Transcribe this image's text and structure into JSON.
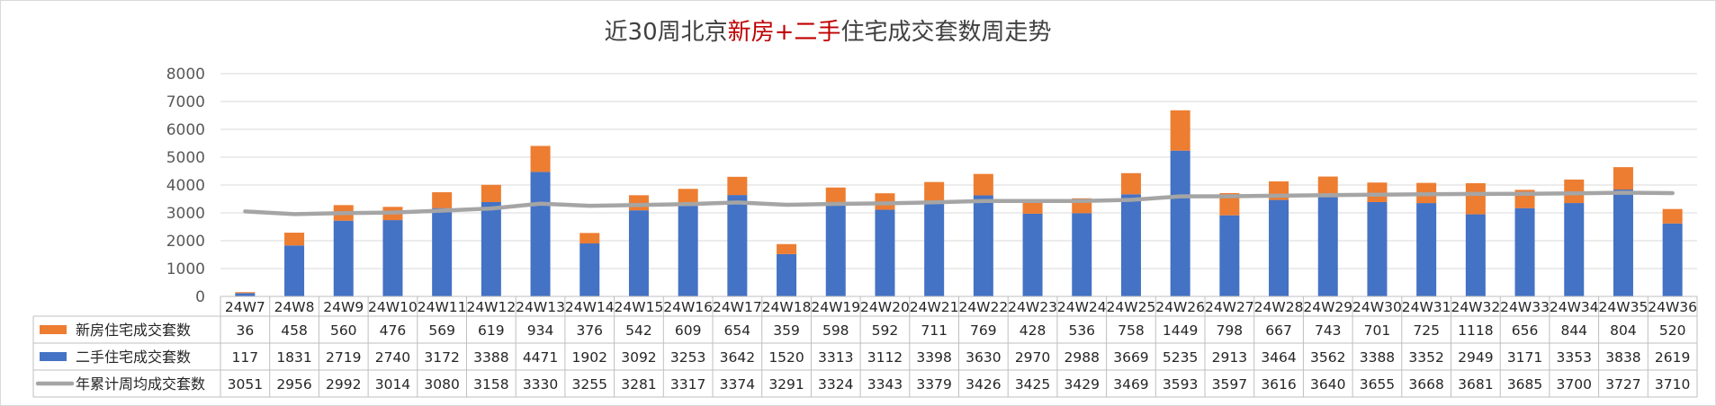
{
  "title": {
    "part1": "近30周北京",
    "part2": "新房+二手",
    "part3": "住宅成交套数周走势"
  },
  "colors": {
    "new_homes": "#ed7d31",
    "secondhand": "#4472c4",
    "avg_line": "#a5a5a5",
    "title_accent": "#c00000",
    "grid": "#d9d9d9"
  },
  "chart_data": {
    "type": "bar",
    "stacked": true,
    "legend_position": "data-table",
    "grid": true,
    "ylim": [
      0,
      8000
    ],
    "yticks": [
      0,
      1000,
      2000,
      3000,
      4000,
      5000,
      6000,
      7000,
      8000
    ],
    "categories": [
      "24W7",
      "24W8",
      "24W9",
      "24W10",
      "24W11",
      "24W12",
      "24W13",
      "24W14",
      "24W15",
      "24W16",
      "24W17",
      "24W18",
      "24W19",
      "24W20",
      "24W21",
      "24W22",
      "24W23",
      "24W24",
      "24W25",
      "24W26",
      "24W27",
      "24W28",
      "24W29",
      "24W30",
      "24W31",
      "24W32",
      "24W33",
      "24W34",
      "24W35",
      "24W36"
    ],
    "series": [
      {
        "name": "新房住宅成交套数",
        "type": "bar",
        "values": [
          36,
          458,
          560,
          476,
          569,
          619,
          934,
          376,
          542,
          609,
          654,
          359,
          598,
          592,
          711,
          769,
          428,
          536,
          758,
          1449,
          798,
          667,
          743,
          701,
          725,
          1118,
          656,
          844,
          804,
          520
        ]
      },
      {
        "name": "二手住宅成交套数",
        "type": "bar",
        "values": [
          117,
          1831,
          2719,
          2740,
          3172,
          3388,
          4471,
          1902,
          3092,
          3253,
          3642,
          1520,
          3313,
          3112,
          3398,
          3630,
          2970,
          2988,
          3669,
          5235,
          2913,
          3464,
          3562,
          3388,
          3352,
          2949,
          3171,
          3353,
          3838,
          2619
        ]
      },
      {
        "name": "年累计周均成交套数",
        "type": "line",
        "values": [
          3051,
          2956,
          2992,
          3014,
          3080,
          3158,
          3330,
          3255,
          3281,
          3317,
          3374,
          3291,
          3324,
          3343,
          3379,
          3426,
          3425,
          3429,
          3469,
          3593,
          3597,
          3616,
          3640,
          3655,
          3668,
          3681,
          3685,
          3700,
          3727,
          3710
        ]
      }
    ]
  }
}
